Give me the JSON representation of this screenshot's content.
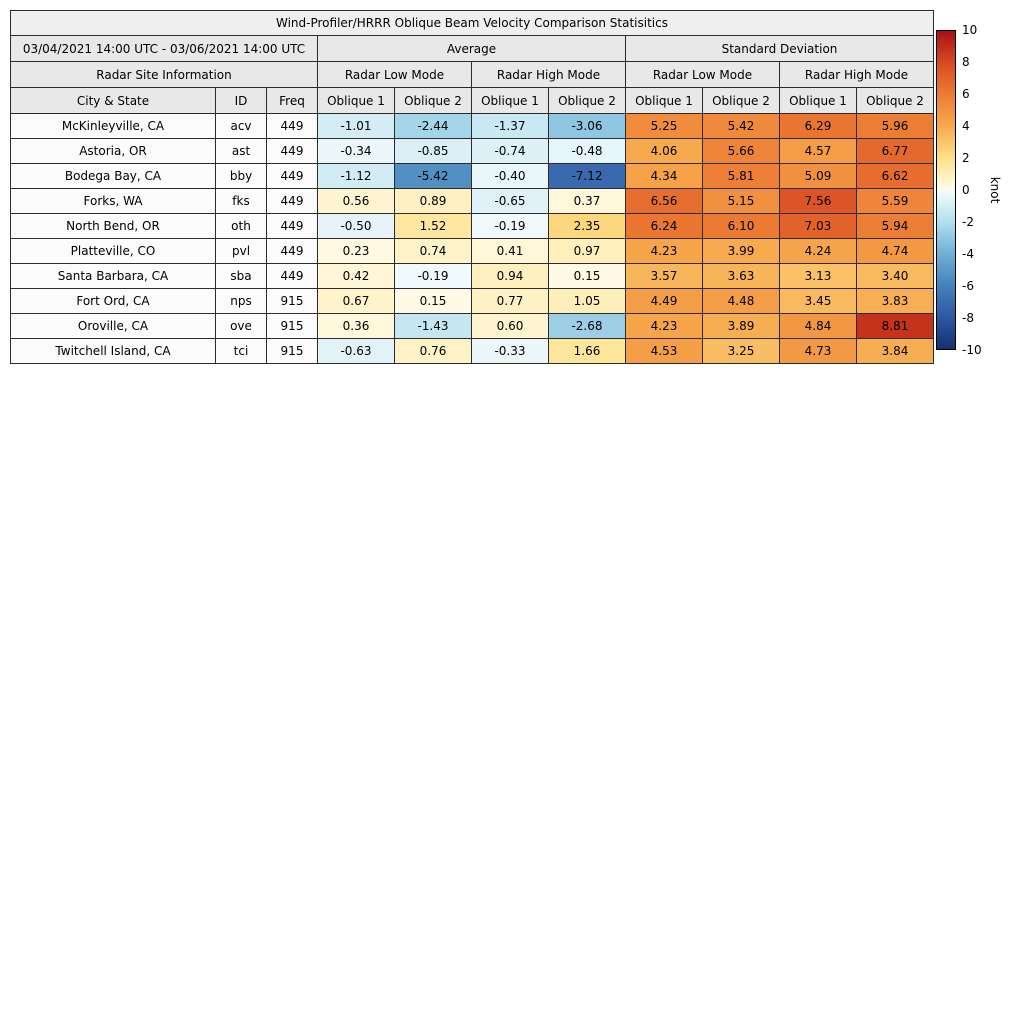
{
  "chart_data": {
    "type": "heatmap",
    "title": "Wind-Profiler/HRRR Oblique Beam Velocity Comparison Statisitics",
    "period": "03/04/2021 14:00 UTC - 03/06/2021 14:00 UTC",
    "group_headers": [
      "Average",
      "Standard Deviation"
    ],
    "site_info_header": "Radar Site Information",
    "mode_headers": [
      "Radar Low Mode",
      "Radar High Mode",
      "Radar Low Mode",
      "Radar High Mode"
    ],
    "columns": [
      "City & State",
      "ID",
      "Freq",
      "Oblique 1",
      "Oblique 2",
      "Oblique 1",
      "Oblique 2",
      "Oblique 1",
      "Oblique 2",
      "Oblique 1",
      "Oblique 2"
    ],
    "rows": [
      {
        "city": "McKinleyville, CA",
        "id": "acv",
        "freq": "449",
        "values": [
          -1.01,
          -2.44,
          -1.37,
          -3.06,
          5.25,
          5.42,
          6.29,
          5.96
        ]
      },
      {
        "city": "Astoria, OR",
        "id": "ast",
        "freq": "449",
        "values": [
          -0.34,
          -0.85,
          -0.74,
          -0.48,
          4.06,
          5.66,
          4.57,
          6.77
        ]
      },
      {
        "city": "Bodega Bay, CA",
        "id": "bby",
        "freq": "449",
        "values": [
          -1.12,
          -5.42,
          -0.4,
          -7.12,
          4.34,
          5.81,
          5.09,
          6.62
        ]
      },
      {
        "city": "Forks, WA",
        "id": "fks",
        "freq": "449",
        "values": [
          0.56,
          0.89,
          -0.65,
          0.37,
          6.56,
          5.15,
          7.56,
          5.59
        ]
      },
      {
        "city": "North Bend, OR",
        "id": "oth",
        "freq": "449",
        "values": [
          -0.5,
          1.52,
          -0.19,
          2.35,
          6.24,
          6.1,
          7.03,
          5.94
        ]
      },
      {
        "city": "Platteville, CO",
        "id": "pvl",
        "freq": "449",
        "values": [
          0.23,
          0.74,
          0.41,
          0.97,
          4.23,
          3.99,
          4.24,
          4.74
        ]
      },
      {
        "city": "Santa Barbara, CA",
        "id": "sba",
        "freq": "449",
        "values": [
          0.42,
          -0.19,
          0.94,
          0.15,
          3.57,
          3.63,
          3.13,
          3.4
        ]
      },
      {
        "city": "Fort Ord, CA",
        "id": "nps",
        "freq": "915",
        "values": [
          0.67,
          0.15,
          0.77,
          1.05,
          4.49,
          4.48,
          3.45,
          3.83
        ]
      },
      {
        "city": "Oroville, CA",
        "id": "ove",
        "freq": "915",
        "values": [
          0.36,
          -1.43,
          0.6,
          -2.68,
          4.23,
          3.89,
          4.84,
          8.81
        ]
      },
      {
        "city": "Twitchell Island, CA",
        "id": "tci",
        "freq": "915",
        "values": [
          -0.63,
          0.76,
          -0.33,
          1.66,
          4.53,
          3.25,
          4.73,
          3.84
        ]
      }
    ],
    "colorbar": {
      "label": "knot",
      "min": -10,
      "max": 10,
      "ticks": [
        10,
        8,
        6,
        4,
        2,
        0,
        -2,
        -4,
        -6,
        -8,
        -10
      ]
    },
    "legend_position": "right",
    "grid": true
  },
  "colors": {
    "header_bg": "#e8e8e8",
    "title_bg": "#efefef",
    "row_bg": "#fbfbfb",
    "border": "#2b2b2b",
    "colormap": [
      {
        "v": -10,
        "c": "#15306e"
      },
      {
        "v": -8,
        "c": "#2e58a4"
      },
      {
        "v": -6,
        "c": "#4681bc"
      },
      {
        "v": -4,
        "c": "#6fb0d5"
      },
      {
        "v": -2,
        "c": "#b3dfee"
      },
      {
        "v": -0.1,
        "c": "#f3fafc"
      },
      {
        "v": 0,
        "c": "#fdfdf6"
      },
      {
        "v": 0.1,
        "c": "#fffbe8"
      },
      {
        "v": 2,
        "c": "#fde088"
      },
      {
        "v": 4,
        "c": "#f7aa4e"
      },
      {
        "v": 6,
        "c": "#ec7c33"
      },
      {
        "v": 8,
        "c": "#d84a22"
      },
      {
        "v": 10,
        "c": "#a81016"
      }
    ]
  }
}
